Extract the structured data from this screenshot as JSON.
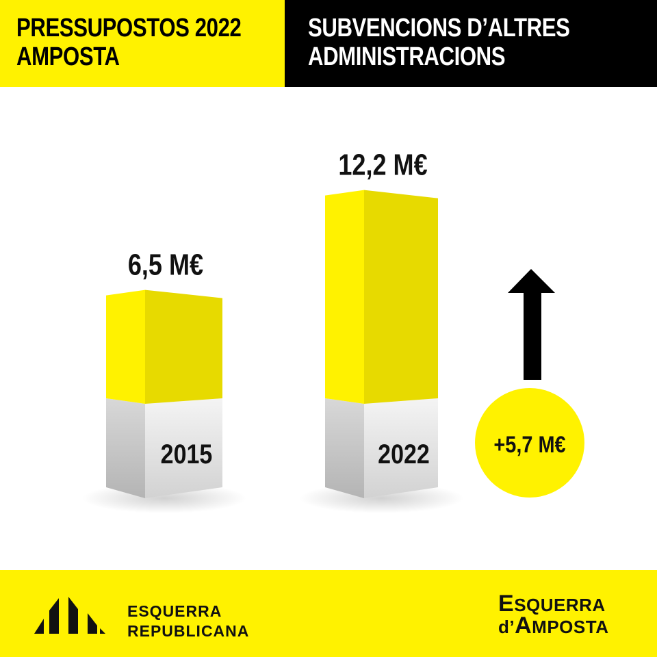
{
  "header": {
    "left_line1": "PRESSUPOSTOS 2022",
    "left_line2": "AMPOSTA",
    "right_line1": "SUBVENCIONS D’ALTRES",
    "right_line2": "ADMINISTRACIONS"
  },
  "chart_data": {
    "type": "bar",
    "categories": [
      "2015",
      "2022"
    ],
    "values": [
      6.5,
      12.2
    ],
    "value_labels": [
      "6,5 M€",
      "12,2 M€"
    ],
    "difference_label": "+5,7 M€",
    "colors": {
      "bar": "#fff200",
      "bar_side": "#e7da00",
      "base": "#e6e6e6",
      "arrow": "#000000",
      "badge": "#fff200"
    }
  },
  "footer": {
    "erc_line1": "ESQUERRA",
    "erc_line2": "REPUBLICANA",
    "eda_line1_initial": "E",
    "eda_line1_rest": "SQUERRA",
    "eda_line2_pre": "d’",
    "eda_line2_initial": "A",
    "eda_line2_rest": "MPOSTA"
  }
}
